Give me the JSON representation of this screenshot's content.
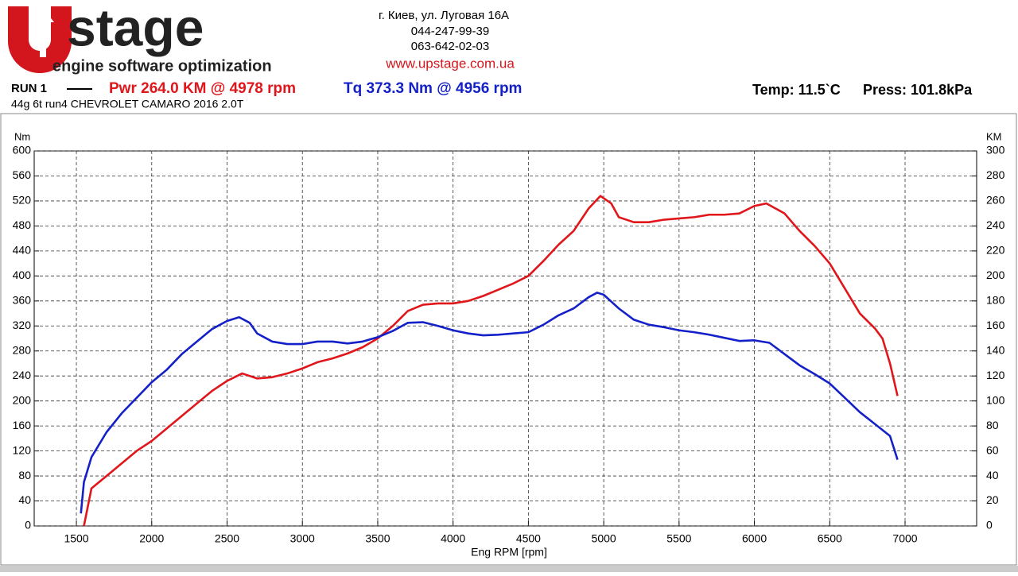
{
  "header": {
    "logo_text": "stage",
    "tagline": "engine software optimization",
    "address": "г. Киев, ул. Луговая 16А",
    "phone1": "044-247-99-39",
    "phone2": "063-642-02-03",
    "website": "www.upstage.com.ua"
  },
  "run": {
    "label": "RUN 1",
    "temp": "Temp: 11.5`C",
    "press": "Press: 101.8kPa"
  },
  "chart_data": {
    "type": "line",
    "subtitle": "44g 6t run4 CHEVROLET CAMARO 2016 2.0T",
    "x_label": "Eng RPM [rpm]",
    "y_label": "Nm",
    "y2_label": "KM",
    "xlim": [
      1220,
      7475
    ],
    "xticks": [
      1500,
      2000,
      2500,
      3000,
      3500,
      4000,
      4500,
      5000,
      5500,
      6000,
      6500,
      7000
    ],
    "ylim": [
      0,
      600
    ],
    "yticks": [
      0,
      40,
      80,
      120,
      160,
      200,
      240,
      280,
      320,
      360,
      400,
      440,
      480,
      520,
      560,
      600
    ],
    "y2lim": [
      0,
      300
    ],
    "y2ticks": [
      0,
      20,
      40,
      60,
      80,
      100,
      120,
      140,
      160,
      180,
      200,
      220,
      240,
      260,
      280,
      300
    ],
    "grid": true,
    "series": [
      {
        "name": "Pwr  264.0 KM @ 4978 rpm",
        "color": "#e0161b",
        "axis": "y2",
        "x": [
          1550,
          1600,
          1700,
          1800,
          1900,
          2000,
          2100,
          2200,
          2300,
          2400,
          2500,
          2600,
          2700,
          2800,
          2900,
          3000,
          3100,
          3200,
          3300,
          3400,
          3500,
          3600,
          3700,
          3800,
          3900,
          4000,
          4100,
          4200,
          4300,
          4400,
          4500,
          4600,
          4700,
          4800,
          4900,
          4978,
          5050,
          5100,
          5200,
          5300,
          5400,
          5500,
          5600,
          5700,
          5800,
          5900,
          6000,
          6080,
          6200,
          6300,
          6400,
          6500,
          6600,
          6700,
          6800,
          6850,
          6900,
          6950
        ],
        "values": [
          0,
          30,
          40,
          50,
          60,
          68,
          78,
          88,
          98,
          108,
          116,
          122,
          118,
          119,
          122,
          126,
          131,
          134,
          138,
          143,
          150,
          160,
          172,
          177,
          178,
          178,
          180,
          184,
          189,
          194,
          200,
          212,
          225,
          236,
          254,
          264,
          258,
          247,
          243,
          243,
          245,
          246,
          247,
          249,
          249,
          250,
          256,
          258,
          250,
          236,
          224,
          210,
          190,
          170,
          158,
          150,
          130,
          104
        ]
      },
      {
        "name": "Tq 373.3 Nm @ 4956 rpm",
        "color": "#1420c8",
        "x": [
          1530,
          1550,
          1600,
          1700,
          1800,
          1900,
          2000,
          2100,
          2200,
          2300,
          2400,
          2500,
          2580,
          2650,
          2700,
          2800,
          2900,
          3000,
          3100,
          3200,
          3300,
          3400,
          3500,
          3600,
          3700,
          3800,
          3900,
          4000,
          4100,
          4200,
          4300,
          4400,
          4500,
          4600,
          4700,
          4800,
          4900,
          4956,
          5000,
          5100,
          5200,
          5300,
          5400,
          5500,
          5600,
          5700,
          5800,
          5900,
          6000,
          6100,
          6200,
          6300,
          6400,
          6500,
          6600,
          6700,
          6800,
          6900,
          6950
        ],
        "values": [
          20,
          70,
          110,
          150,
          180,
          205,
          230,
          250,
          275,
          295,
          315,
          328,
          334,
          325,
          308,
          295,
          291,
          291,
          295,
          295,
          292,
          295,
          302,
          312,
          325,
          326,
          320,
          313,
          308,
          305,
          306,
          308,
          310,
          322,
          337,
          348,
          366,
          373.3,
          370,
          348,
          330,
          322,
          318,
          313,
          310,
          306,
          301,
          296,
          297,
          293,
          275,
          257,
          243,
          228,
          205,
          182,
          163,
          144,
          106
        ]
      }
    ]
  }
}
